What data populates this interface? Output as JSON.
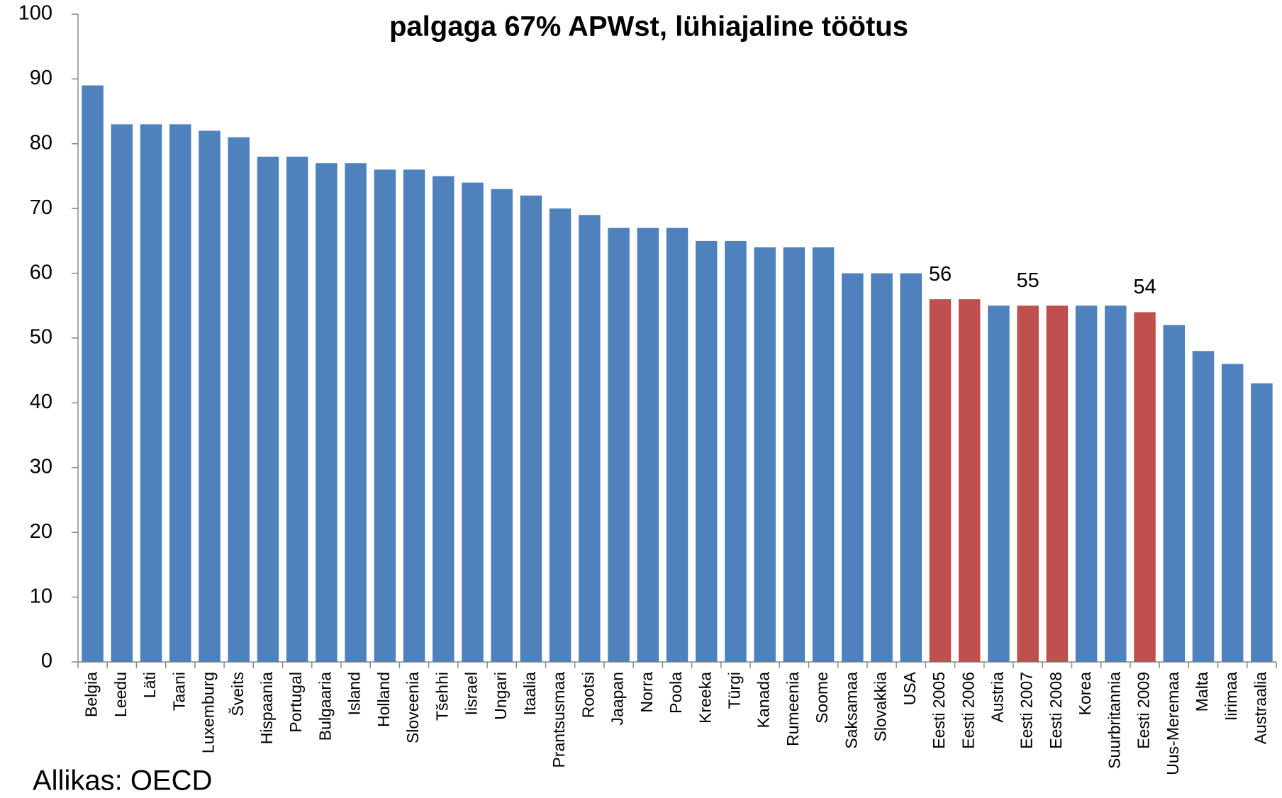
{
  "chart_data": {
    "type": "bar",
    "title": "palgaga 67% APWst, lühiajaline töötus",
    "categories": [
      "Belgia",
      "Leedu",
      "Läti",
      "Taani",
      "Luxemburg",
      "Šveits",
      "Hispaania",
      "Portugal",
      "Bulgaaria",
      "Island",
      "Holland",
      "Sloveenia",
      "Tšehhi",
      "Iisrael",
      "Ungari",
      "Itaalia",
      "Prantsusmaa",
      "Rootsi",
      "Jaapan",
      "Norra",
      "Poola",
      "Kreeka",
      "Türgi",
      "Kanada",
      "Rumeenia",
      "Soome",
      "Saksamaa",
      "Slovakkia",
      "USA",
      "Eesti 2005",
      "Eesti 2006",
      "Austria",
      "Eesti 2007",
      "Eesti 2008",
      "Korea",
      "Suurbritannia",
      "Eesti 2009",
      "Uus-Meremaa",
      "Malta",
      "Iirimaa",
      "Austraalia"
    ],
    "values": [
      89,
      83,
      83,
      83,
      82,
      81,
      78,
      78,
      77,
      77,
      76,
      76,
      75,
      74,
      73,
      72,
      70,
      69,
      67,
      67,
      67,
      65,
      65,
      64,
      64,
      64,
      60,
      60,
      60,
      56,
      56,
      55,
      55,
      55,
      55,
      55,
      54,
      52,
      48,
      46,
      43
    ],
    "colors": [
      "#4f81bd",
      "#4f81bd",
      "#4f81bd",
      "#4f81bd",
      "#4f81bd",
      "#4f81bd",
      "#4f81bd",
      "#4f81bd",
      "#4f81bd",
      "#4f81bd",
      "#4f81bd",
      "#4f81bd",
      "#4f81bd",
      "#4f81bd",
      "#4f81bd",
      "#4f81bd",
      "#4f81bd",
      "#4f81bd",
      "#4f81bd",
      "#4f81bd",
      "#4f81bd",
      "#4f81bd",
      "#4f81bd",
      "#4f81bd",
      "#4f81bd",
      "#4f81bd",
      "#4f81bd",
      "#4f81bd",
      "#4f81bd",
      "#c0504d",
      "#c0504d",
      "#4f81bd",
      "#c0504d",
      "#c0504d",
      "#4f81bd",
      "#4f81bd",
      "#c0504d",
      "#4f81bd",
      "#4f81bd",
      "#4f81bd",
      "#4f81bd"
    ],
    "data_label_indices": [
      29,
      32,
      36
    ],
    "ylim": [
      0,
      100
    ],
    "yticks": [
      0,
      10,
      20,
      30,
      40,
      50,
      60,
      70,
      80,
      90,
      100
    ],
    "grid": false,
    "source": "Allikas: OECD"
  }
}
